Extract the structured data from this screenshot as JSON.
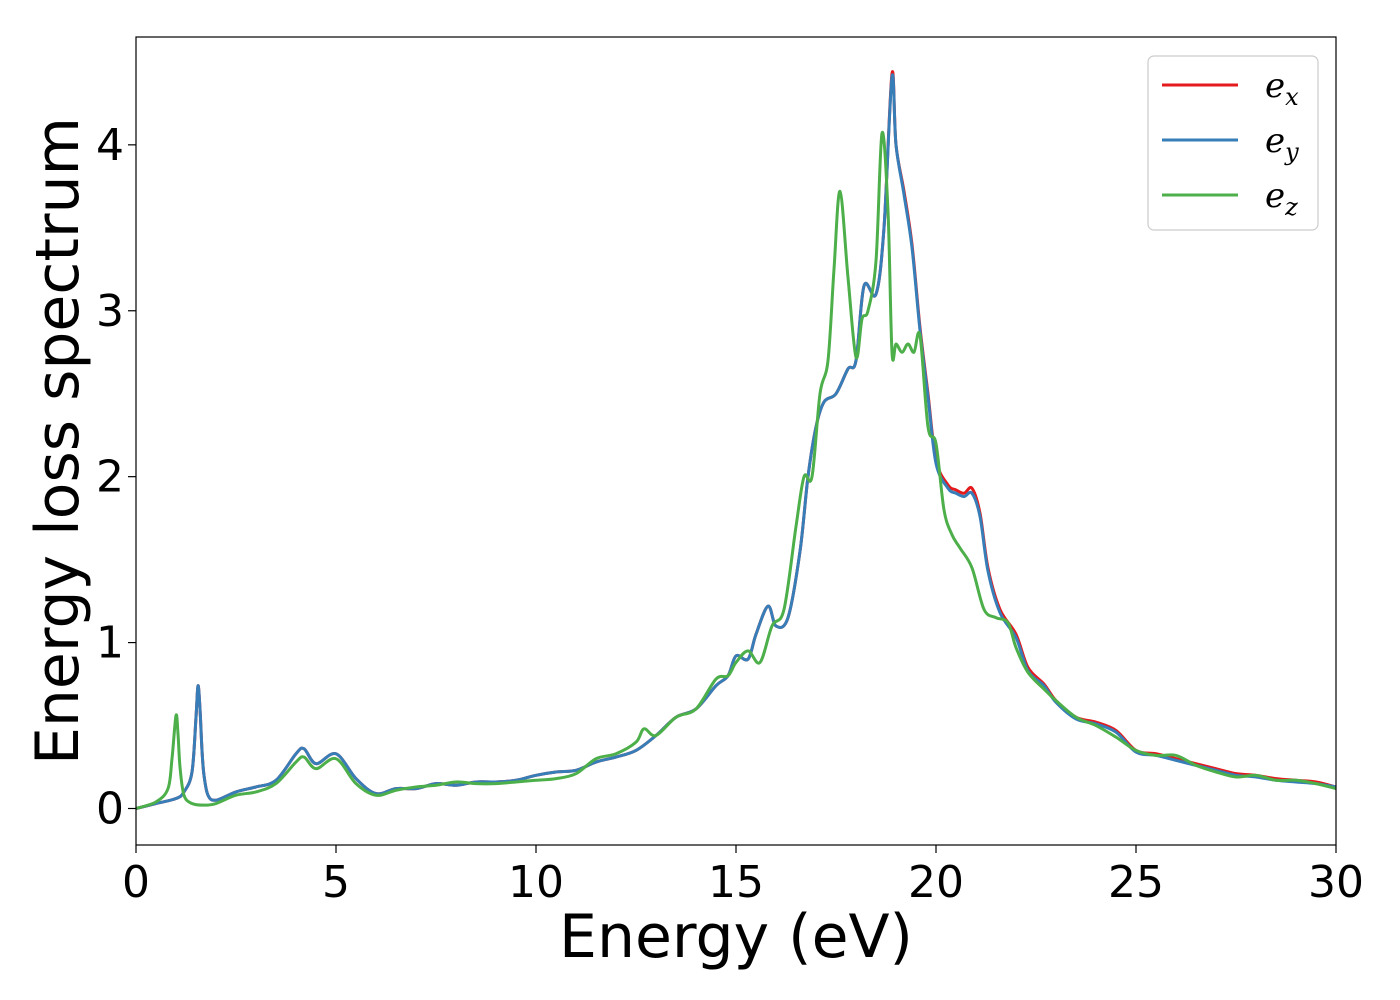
{
  "chart_data": {
    "type": "line",
    "xlabel": "Energy (eV)",
    "ylabel": "Energy loss spectrum",
    "xlim": [
      0,
      30
    ],
    "ylim": [
      -0.22,
      4.65
    ],
    "xticks": [
      0,
      5,
      10,
      15,
      20,
      25,
      30
    ],
    "xtick_labels": [
      "0",
      "5",
      "10",
      "15",
      "20",
      "25",
      "30"
    ],
    "yticks": [
      0,
      1,
      2,
      3,
      4
    ],
    "ytick_labels": [
      "0",
      "1",
      "2",
      "3",
      "4"
    ],
    "grid": false,
    "legend_position": "top-right",
    "series": [
      {
        "name": "e_x",
        "base": "e",
        "subscript": "x",
        "color": "#e41a1c",
        "x": [
          0,
          0.5,
          1.0,
          1.2,
          1.4,
          1.5,
          1.55,
          1.6,
          1.65,
          1.7,
          1.8,
          2.0,
          2.5,
          3.0,
          3.5,
          4.0,
          4.2,
          4.5,
          5.0,
          5.5,
          6.0,
          6.5,
          7.0,
          7.5,
          8.0,
          8.5,
          9.0,
          9.5,
          10.0,
          10.5,
          11.0,
          11.5,
          12.0,
          12.5,
          13.0,
          13.5,
          14.0,
          14.5,
          14.8,
          15.0,
          15.3,
          15.5,
          15.8,
          16.0,
          16.3,
          16.6,
          16.8,
          17.0,
          17.2,
          17.5,
          17.8,
          18.0,
          18.2,
          18.5,
          18.7,
          18.9,
          19.0,
          19.2,
          19.4,
          19.6,
          19.8,
          20.0,
          20.3,
          20.5,
          20.7,
          20.9,
          21.1,
          21.3,
          21.6,
          22.0,
          22.3,
          22.7,
          23.0,
          23.5,
          24.0,
          24.5,
          25.0,
          25.5,
          26.0,
          26.5,
          27.0,
          27.5,
          28.0,
          28.5,
          29.0,
          29.5,
          30.0
        ],
        "y": [
          0,
          0.03,
          0.06,
          0.1,
          0.22,
          0.55,
          0.74,
          0.6,
          0.35,
          0.2,
          0.08,
          0.05,
          0.1,
          0.13,
          0.17,
          0.33,
          0.36,
          0.27,
          0.33,
          0.18,
          0.09,
          0.12,
          0.12,
          0.15,
          0.14,
          0.16,
          0.16,
          0.17,
          0.2,
          0.22,
          0.23,
          0.28,
          0.31,
          0.35,
          0.44,
          0.55,
          0.6,
          0.74,
          0.8,
          0.92,
          0.9,
          1.05,
          1.22,
          1.1,
          1.15,
          1.55,
          2.0,
          2.3,
          2.45,
          2.5,
          2.65,
          2.7,
          3.15,
          3.1,
          3.5,
          4.43,
          4.0,
          3.72,
          3.4,
          2.9,
          2.5,
          2.1,
          1.95,
          1.92,
          1.9,
          1.93,
          1.78,
          1.45,
          1.2,
          1.05,
          0.85,
          0.75,
          0.65,
          0.55,
          0.52,
          0.47,
          0.35,
          0.33,
          0.3,
          0.27,
          0.24,
          0.21,
          0.2,
          0.18,
          0.17,
          0.16,
          0.13
        ]
      },
      {
        "name": "e_y",
        "base": "e",
        "subscript": "y",
        "color": "#377eb8",
        "x": [
          0,
          0.5,
          1.0,
          1.2,
          1.4,
          1.5,
          1.55,
          1.6,
          1.65,
          1.7,
          1.8,
          2.0,
          2.5,
          3.0,
          3.5,
          4.0,
          4.2,
          4.5,
          5.0,
          5.5,
          6.0,
          6.5,
          7.0,
          7.5,
          8.0,
          8.5,
          9.0,
          9.5,
          10.0,
          10.5,
          11.0,
          11.5,
          12.0,
          12.5,
          13.0,
          13.5,
          14.0,
          14.5,
          14.8,
          15.0,
          15.3,
          15.5,
          15.8,
          16.0,
          16.3,
          16.6,
          16.8,
          17.0,
          17.2,
          17.5,
          17.8,
          18.0,
          18.2,
          18.5,
          18.7,
          18.9,
          19.0,
          19.2,
          19.4,
          19.6,
          19.8,
          20.0,
          20.3,
          20.5,
          20.7,
          20.9,
          21.1,
          21.3,
          21.6,
          22.0,
          22.3,
          22.7,
          23.0,
          23.5,
          24.0,
          24.5,
          25.0,
          25.5,
          26.0,
          26.5,
          27.0,
          27.5,
          28.0,
          28.5,
          29.0,
          29.5,
          30.0
        ],
        "y": [
          0,
          0.03,
          0.06,
          0.1,
          0.22,
          0.55,
          0.74,
          0.6,
          0.35,
          0.2,
          0.08,
          0.05,
          0.1,
          0.13,
          0.17,
          0.33,
          0.36,
          0.27,
          0.33,
          0.18,
          0.09,
          0.12,
          0.12,
          0.15,
          0.14,
          0.16,
          0.16,
          0.17,
          0.2,
          0.22,
          0.23,
          0.28,
          0.31,
          0.35,
          0.44,
          0.55,
          0.6,
          0.74,
          0.8,
          0.92,
          0.9,
          1.05,
          1.22,
          1.1,
          1.15,
          1.55,
          2.0,
          2.3,
          2.45,
          2.5,
          2.65,
          2.7,
          3.15,
          3.1,
          3.5,
          4.41,
          4.0,
          3.7,
          3.38,
          2.88,
          2.48,
          2.08,
          1.93,
          1.9,
          1.88,
          1.9,
          1.76,
          1.43,
          1.18,
          1.03,
          0.83,
          0.74,
          0.64,
          0.54,
          0.51,
          0.46,
          0.34,
          0.32,
          0.29,
          0.26,
          0.23,
          0.2,
          0.19,
          0.17,
          0.16,
          0.15,
          0.13
        ]
      },
      {
        "name": "e_z",
        "base": "e",
        "subscript": "z",
        "color": "#4daf4a",
        "x": [
          0,
          0.5,
          0.8,
          0.9,
          1.0,
          1.05,
          1.1,
          1.2,
          1.4,
          1.7,
          2.0,
          2.5,
          3.0,
          3.5,
          4.0,
          4.2,
          4.5,
          5.0,
          5.5,
          6.0,
          6.5,
          7.0,
          7.5,
          8.0,
          8.5,
          9.0,
          9.5,
          10.0,
          10.5,
          11.0,
          11.5,
          12.0,
          12.5,
          12.7,
          13.0,
          13.5,
          14.0,
          14.5,
          14.8,
          15.0,
          15.3,
          15.6,
          15.9,
          16.2,
          16.5,
          16.7,
          16.9,
          17.1,
          17.3,
          17.45,
          17.6,
          17.8,
          18.0,
          18.15,
          18.3,
          18.5,
          18.65,
          18.8,
          18.9,
          19.0,
          19.15,
          19.3,
          19.45,
          19.6,
          19.8,
          20.0,
          20.2,
          20.4,
          20.6,
          20.9,
          21.2,
          21.5,
          21.8,
          22.0,
          22.3,
          22.7,
          23.0,
          23.5,
          24.0,
          24.5,
          25.0,
          25.5,
          26.0,
          26.5,
          27.0,
          27.5,
          28.0,
          28.5,
          29.0,
          29.5,
          30.0
        ],
        "y": [
          0,
          0.04,
          0.12,
          0.3,
          0.56,
          0.45,
          0.25,
          0.08,
          0.03,
          0.02,
          0.03,
          0.08,
          0.1,
          0.15,
          0.28,
          0.31,
          0.24,
          0.3,
          0.15,
          0.08,
          0.11,
          0.13,
          0.14,
          0.16,
          0.15,
          0.15,
          0.16,
          0.17,
          0.18,
          0.21,
          0.3,
          0.33,
          0.4,
          0.48,
          0.44,
          0.55,
          0.6,
          0.78,
          0.8,
          0.88,
          0.95,
          0.88,
          1.1,
          1.2,
          1.7,
          2.0,
          2.0,
          2.5,
          2.7,
          3.25,
          3.72,
          3.2,
          2.72,
          2.95,
          3.0,
          3.3,
          4.07,
          3.6,
          2.75,
          2.8,
          2.75,
          2.8,
          2.75,
          2.85,
          2.3,
          2.2,
          1.8,
          1.65,
          1.57,
          1.45,
          1.2,
          1.15,
          1.12,
          0.97,
          0.82,
          0.72,
          0.65,
          0.55,
          0.5,
          0.43,
          0.35,
          0.32,
          0.32,
          0.26,
          0.22,
          0.19,
          0.2,
          0.17,
          0.17,
          0.15,
          0.12
        ]
      }
    ]
  }
}
